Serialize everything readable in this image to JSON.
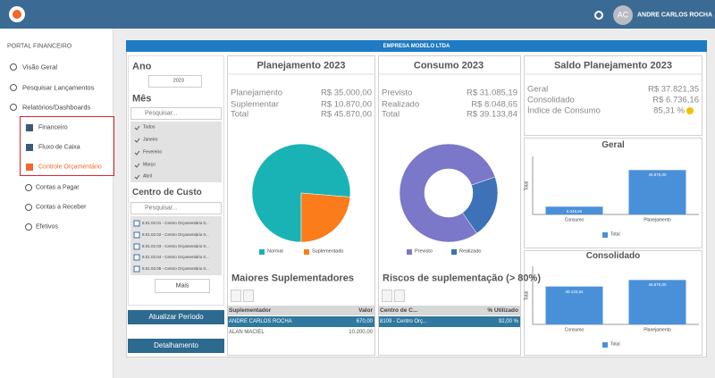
{
  "header": {
    "user_initials": "AC",
    "user_name": "ANDRE CARLOS ROCHA"
  },
  "sidebar": {
    "title": "PORTAL FINANCEIRO",
    "items": [
      "Visão Geral",
      "Pesquisar Lançamentos",
      "Relatórios/Dashboards"
    ],
    "subitems": [
      "Financeiro",
      "Fluxo de Caixa",
      "Controle Orçamentário"
    ],
    "more_items": [
      "Contas a Pagar",
      "Contas a Receber",
      "Efetivos"
    ]
  },
  "dashboard": {
    "title": "EMPRESA MODELO LTDA"
  },
  "filters": {
    "year_label": "Ano",
    "year": "2023",
    "month_label": "Mês",
    "month_search": "Pesquisar...",
    "months": [
      "Todos",
      "Janeiro",
      "Fevereiro",
      "Março",
      "Abril"
    ],
    "cost_center_label": "Centro de Custo",
    "cost_center_search": "Pesquisar...",
    "cost_centers": [
      "8.01.02.01 - Centro Orçamentário 0...",
      "8.01.02.02 - Centro Orçamentário 0...",
      "8.01.02.03 - Centro Orçamentário 0...",
      "8.01.02.04 - Centro Orçamentário 0...",
      "8.01.02.05 - Centro Orçamentário 0..."
    ],
    "more_button": "Mais",
    "update_button": "Atualizar Período",
    "detail_button": "Detalhamento"
  },
  "planejamento": {
    "title": "Planejamento 2023",
    "rows": [
      [
        "Planejamento",
        "R$ 35.000,00"
      ],
      [
        "Suplementar",
        "R$ 10.870,00"
      ],
      [
        "Total",
        "R$ 45.870,00"
      ]
    ],
    "chart": {
      "type": "pie",
      "categories": [
        "Normal",
        "Suplementado"
      ],
      "values": [
        35000,
        10870
      ],
      "colors": [
        "#1ab3b5",
        "#fb7c1b"
      ]
    },
    "table": {
      "title": "Maiores Suplementadores",
      "columns": [
        "Suplementador",
        "Valor"
      ],
      "rows": [
        [
          "ANDRE CARLOS ROCHA",
          "670,00"
        ],
        [
          "ALAN MACIEL",
          "10.200,00"
        ]
      ]
    }
  },
  "consumo": {
    "title": "Consumo 2023",
    "rows": [
      [
        "Previsto",
        "R$ 31.085,19"
      ],
      [
        "Realizado",
        "R$ 8.048,65"
      ],
      [
        "Total",
        "R$ 39.133,84"
      ]
    ],
    "chart": {
      "type": "donut",
      "categories": [
        "Previsto",
        "Realizado"
      ],
      "values": [
        31085.19,
        8048.65
      ],
      "colors": [
        "#7b77c9",
        "#3d72b8"
      ]
    },
    "table": {
      "title": "Riscos de suplementação (> 80%)",
      "columns": [
        "Centro de C...",
        "% Utilizado"
      ],
      "rows": [
        [
          "8109 - Centro Orç...",
          "92,00 %"
        ]
      ]
    }
  },
  "saldo": {
    "title": "Saldo Planejamento 2023",
    "rows": [
      [
        "Geral",
        "R$ 37.821,35"
      ],
      [
        "Consolidado",
        "R$ 6.736,16"
      ],
      [
        "Índice de Consumo",
        "85,31 %"
      ]
    ],
    "charts": [
      {
        "type": "bar",
        "title": "Geral",
        "y_label": "Total",
        "legend": "Total",
        "color": "#4a90d9",
        "categories": [
          "Consumo",
          "Planejamento"
        ],
        "values": [
          8048.65,
          45870
        ],
        "value_labels": [
          "8.048,65",
          "45.870,00"
        ],
        "ylim": [
          0,
          60000
        ]
      },
      {
        "type": "bar",
        "title": "Consolidado",
        "y_label": "Total",
        "legend": "Total",
        "color": "#4a90d9",
        "categories": [
          "Consumo",
          "Planejamento"
        ],
        "values": [
          39133.84,
          45870
        ],
        "value_labels": [
          "39.133,84",
          "45.870,00"
        ],
        "ylim": [
          0,
          60000
        ]
      }
    ]
  }
}
